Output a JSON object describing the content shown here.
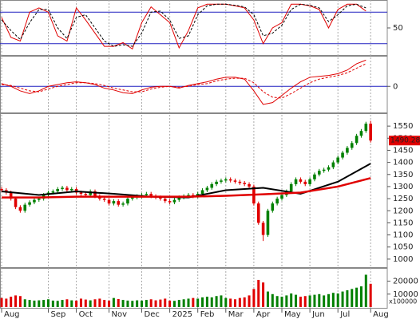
{
  "chart_data": [
    {
      "type": "line",
      "ylim": [
        0,
        100
      ],
      "yticks": [
        50
      ],
      "levels": [
        20,
        80
      ],
      "level_color": "#2020c0",
      "x": [
        0,
        2,
        4,
        6,
        8,
        10,
        12,
        14,
        16,
        18,
        20,
        22,
        24,
        26,
        28,
        30,
        32,
        34,
        36,
        38,
        40,
        42,
        44,
        46,
        48,
        50,
        52,
        54,
        56,
        58,
        60,
        62,
        64,
        66,
        68,
        70,
        72,
        74,
        76,
        78
      ],
      "series": [
        {
          "color": "#e00000",
          "dash": false,
          "values": [
            70,
            32,
            25,
            80,
            88,
            80,
            35,
            25,
            88,
            65,
            40,
            15,
            15,
            22,
            10,
            60,
            90,
            75,
            60,
            12,
            45,
            88,
            95,
            95,
            95,
            92,
            88,
            65,
            20,
            50,
            60,
            95,
            95,
            92,
            85,
            50,
            85,
            95,
            95,
            82
          ]
        },
        {
          "color": "#000000",
          "dash": true,
          "values": [
            65,
            45,
            28,
            60,
            85,
            85,
            50,
            30,
            70,
            75,
            50,
            25,
            15,
            18,
            15,
            40,
            80,
            82,
            65,
            30,
            35,
            75,
            92,
            95,
            95,
            93,
            90,
            75,
            35,
            40,
            55,
            85,
            95,
            93,
            88,
            62,
            75,
            92,
            95,
            88
          ]
        }
      ]
    },
    {
      "type": "line",
      "ylim": [
        -28,
        32
      ],
      "yticks": [
        0
      ],
      "levels": [
        0
      ],
      "level_color": "#2020c0",
      "x": [
        0,
        2,
        4,
        6,
        8,
        10,
        12,
        14,
        16,
        18,
        20,
        22,
        24,
        26,
        28,
        30,
        32,
        34,
        36,
        38,
        40,
        42,
        44,
        46,
        48,
        50,
        52,
        54,
        56,
        58,
        60,
        62,
        64,
        66,
        68,
        70,
        72,
        74,
        76,
        78
      ],
      "series": [
        {
          "color": "#e00000",
          "dash": false,
          "values": [
            3,
            0,
            -5,
            -8,
            -5,
            0,
            2,
            4,
            5,
            4,
            2,
            -2,
            -4,
            -7,
            -8,
            -4,
            -1,
            0,
            0,
            -2,
            1,
            3,
            5,
            8,
            10,
            10,
            8,
            -5,
            -20,
            -18,
            -10,
            -2,
            5,
            10,
            11,
            12,
            14,
            18,
            25,
            29
          ]
        },
        {
          "color": "#e00000",
          "dash": true,
          "values": [
            2,
            1,
            -2,
            -5,
            -6,
            -3,
            0,
            2,
            4,
            4,
            3,
            1,
            -2,
            -4,
            -6,
            -6,
            -3,
            -1,
            0,
            -1,
            0,
            2,
            3,
            6,
            8,
            9,
            9,
            4,
            -6,
            -12,
            -13,
            -8,
            -2,
            4,
            8,
            10,
            12,
            15,
            20,
            25
          ]
        }
      ]
    },
    {
      "type": "candlestick",
      "ylim": [
        970,
        1590
      ],
      "yticks": [
        1000,
        1050,
        1100,
        1150,
        1200,
        1250,
        1300,
        1350,
        1400,
        1450,
        1500,
        1550
      ],
      "up_color": "#008000",
      "down_color": "#e00000",
      "open": [
        1290,
        1285,
        1275,
        1250,
        1215,
        1200,
        1225,
        1235,
        1245,
        1250,
        1265,
        1275,
        1280,
        1290,
        1295,
        1285,
        1290,
        1275,
        1270,
        1265,
        1280,
        1260,
        1250,
        1245,
        1230,
        1240,
        1225,
        1230,
        1250,
        1255,
        1260,
        1265,
        1270,
        1260,
        1255,
        1250,
        1240,
        1235,
        1245,
        1255,
        1260,
        1265,
        1260,
        1270,
        1285,
        1295,
        1310,
        1320,
        1325,
        1330,
        1325,
        1320,
        1315,
        1310,
        1300,
        1230,
        1150,
        1100,
        1200,
        1230,
        1250,
        1265,
        1280,
        1310,
        1330,
        1320,
        1310,
        1330,
        1350,
        1365,
        1370,
        1380,
        1400,
        1420,
        1440,
        1460,
        1480,
        1510,
        1530,
        1560
      ],
      "high": [
        1298,
        1293,
        1283,
        1258,
        1223,
        1233,
        1243,
        1253,
        1258,
        1273,
        1283,
        1288,
        1298,
        1303,
        1303,
        1298,
        1298,
        1283,
        1278,
        1288,
        1288,
        1268,
        1258,
        1253,
        1248,
        1248,
        1238,
        1258,
        1263,
        1268,
        1273,
        1278,
        1278,
        1268,
        1263,
        1258,
        1248,
        1253,
        1263,
        1268,
        1273,
        1273,
        1278,
        1293,
        1303,
        1318,
        1328,
        1333,
        1338,
        1338,
        1333,
        1328,
        1323,
        1318,
        1308,
        1238,
        1158,
        1208,
        1238,
        1258,
        1273,
        1288,
        1318,
        1338,
        1338,
        1328,
        1338,
        1358,
        1373,
        1378,
        1388,
        1408,
        1428,
        1448,
        1468,
        1488,
        1518,
        1538,
        1568,
        1572
      ],
      "low": [
        1277,
        1267,
        1242,
        1207,
        1192,
        1192,
        1217,
        1227,
        1237,
        1242,
        1257,
        1267,
        1272,
        1282,
        1277,
        1277,
        1267,
        1262,
        1257,
        1257,
        1252,
        1242,
        1237,
        1222,
        1222,
        1217,
        1217,
        1222,
        1242,
        1247,
        1252,
        1257,
        1252,
        1247,
        1242,
        1232,
        1227,
        1227,
        1237,
        1247,
        1252,
        1252,
        1252,
        1262,
        1277,
        1287,
        1302,
        1312,
        1317,
        1317,
        1312,
        1307,
        1302,
        1292,
        1222,
        1142,
        1075,
        1092,
        1192,
        1222,
        1242,
        1257,
        1272,
        1302,
        1312,
        1302,
        1302,
        1322,
        1342,
        1357,
        1362,
        1372,
        1392,
        1412,
        1432,
        1452,
        1472,
        1502,
        1522,
        1482
      ],
      "close": [
        1285,
        1275,
        1250,
        1215,
        1200,
        1225,
        1235,
        1245,
        1250,
        1265,
        1275,
        1280,
        1290,
        1295,
        1285,
        1290,
        1275,
        1270,
        1265,
        1280,
        1260,
        1250,
        1245,
        1230,
        1240,
        1225,
        1230,
        1250,
        1255,
        1260,
        1265,
        1270,
        1260,
        1255,
        1250,
        1240,
        1235,
        1245,
        1255,
        1260,
        1265,
        1260,
        1270,
        1285,
        1295,
        1310,
        1320,
        1325,
        1330,
        1325,
        1320,
        1315,
        1310,
        1300,
        1230,
        1150,
        1100,
        1200,
        1230,
        1250,
        1265,
        1280,
        1310,
        1330,
        1320,
        1310,
        1330,
        1350,
        1365,
        1370,
        1380,
        1400,
        1420,
        1440,
        1460,
        1480,
        1510,
        1530,
        1560,
        1490.28
      ],
      "series": [
        {
          "color": "#000000",
          "width": 2,
          "x": [
            0,
            8,
            16,
            24,
            32,
            40,
            48,
            56,
            64,
            72,
            79
          ],
          "values": [
            1280,
            1265,
            1280,
            1270,
            1258,
            1255,
            1285,
            1295,
            1270,
            1320,
            1395
          ]
        },
        {
          "color": "#e00000",
          "width": 2.5,
          "x": [
            0,
            8,
            16,
            24,
            32,
            40,
            48,
            56,
            64,
            72,
            79
          ],
          "values": [
            1255,
            1255,
            1258,
            1258,
            1258,
            1258,
            1262,
            1268,
            1275,
            1300,
            1335
          ]
        }
      ]
    },
    {
      "type": "bar",
      "ylim": [
        0,
        29000
      ],
      "yticks": [
        10000,
        20000
      ],
      "y_unit": "x100000",
      "up_color": "#008000",
      "down_color": "#e00000",
      "values": [
        7000,
        6500,
        8000,
        9000,
        8500,
        6000,
        5500,
        5000,
        5200,
        5500,
        6000,
        5000,
        4800,
        5500,
        6000,
        5200,
        5000,
        6500,
        5800,
        5200,
        6000,
        6500,
        5500,
        5000,
        7000,
        6200,
        5500,
        5000,
        4800,
        5200,
        5000,
        5500,
        6000,
        5200,
        5800,
        6500,
        5000,
        4800,
        5500,
        6000,
        6500,
        7000,
        6500,
        7500,
        8000,
        7500,
        8500,
        9000,
        7000,
        6500,
        6000,
        7000,
        7500,
        9000,
        14000,
        21000,
        19000,
        12000,
        10000,
        8500,
        8000,
        9000,
        10500,
        9500,
        8000,
        8500,
        9000,
        9500,
        10000,
        9000,
        10000,
        11000,
        10500,
        12000,
        13000,
        14000,
        15000,
        16000,
        25000,
        18000
      ],
      "categories": [
        "Aug",
        null,
        null,
        null,
        null,
        null,
        null,
        null,
        null,
        null,
        "Sep",
        null,
        null,
        null,
        null,
        null,
        "Oct",
        null,
        null,
        null,
        null,
        null,
        null,
        "Nov",
        null,
        null,
        null,
        null,
        null,
        null,
        "Dec",
        null,
        null,
        null,
        null,
        null,
        "2025",
        null,
        null,
        null,
        null,
        null,
        "Feb",
        null,
        null,
        null,
        null,
        null,
        "Mar",
        null,
        null,
        null,
        null,
        null,
        "Apr",
        null,
        null,
        null,
        null,
        null,
        "May",
        null,
        null,
        null,
        null,
        null,
        "Jun",
        null,
        null,
        null,
        null,
        null,
        "Jul",
        null,
        null,
        null,
        null,
        null,
        null,
        "Aug"
      ]
    }
  ]
}
